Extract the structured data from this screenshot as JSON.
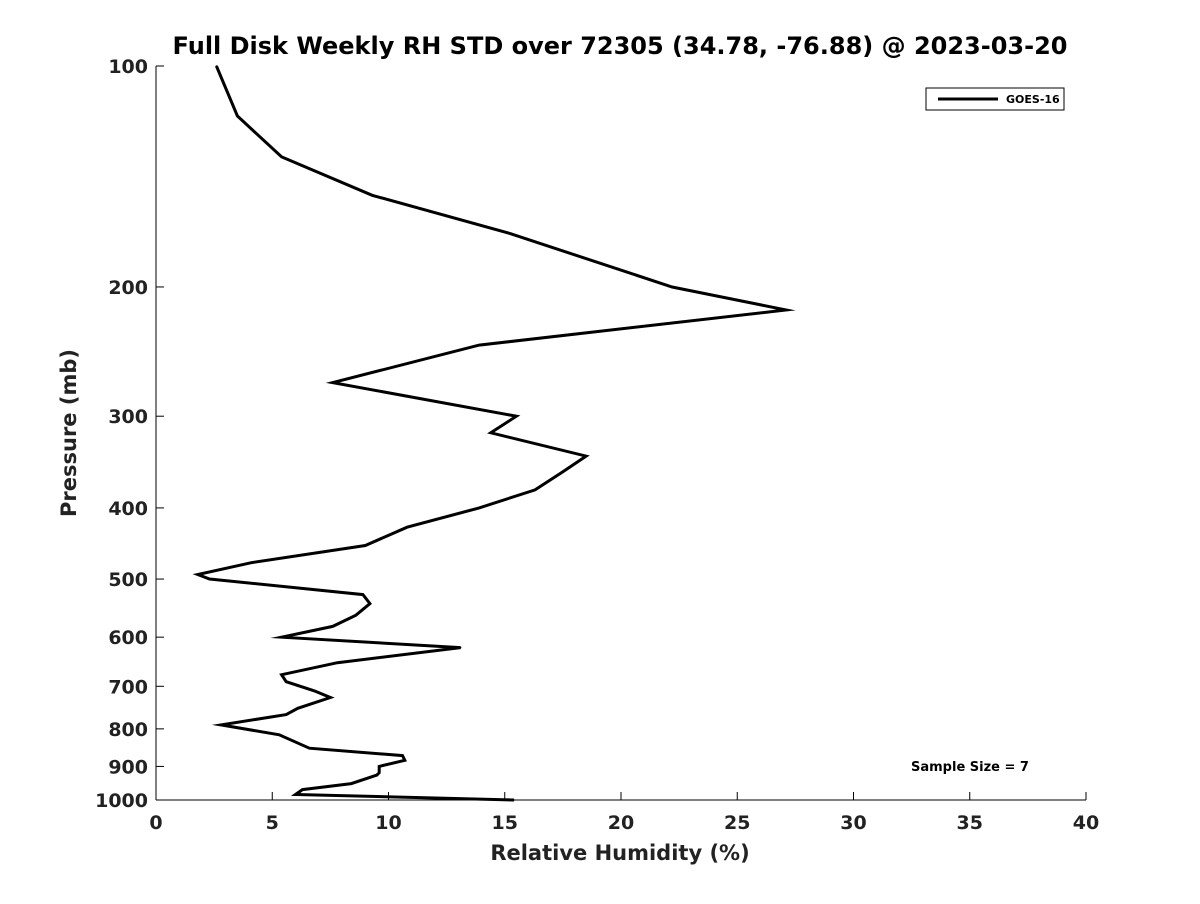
{
  "chart_data": {
    "type": "line",
    "title": "Full Disk Weekly RH STD over 72305 (34.78, -76.88) @ 2023-03-20",
    "xlabel": "Relative Humidity (%)",
    "ylabel": "Pressure (mb)",
    "xlim": [
      0,
      40
    ],
    "ylim": [
      1000,
      100
    ],
    "y_scale": "log",
    "x_ticks": [
      0,
      5,
      10,
      15,
      20,
      25,
      30,
      35,
      40
    ],
    "y_ticks": [
      100,
      200,
      300,
      400,
      500,
      600,
      700,
      800,
      900,
      1000
    ],
    "grid": false,
    "legend_position": "top-right",
    "annotation": "Sample Size = 7",
    "series": [
      {
        "name": "GOES-16",
        "color": "#000000",
        "points": [
          [
            2.6,
            100
          ],
          [
            3.5,
            117
          ],
          [
            5.4,
            133
          ],
          [
            9.3,
            150
          ],
          [
            15.2,
            169
          ],
          [
            22.2,
            200
          ],
          [
            27.1,
            215
          ],
          [
            13.9,
            240
          ],
          [
            7.6,
            270
          ],
          [
            15.5,
            300
          ],
          [
            14.4,
            316
          ],
          [
            18.5,
            340
          ],
          [
            17.5,
            357
          ],
          [
            16.3,
            378
          ],
          [
            13.9,
            400
          ],
          [
            10.8,
            425
          ],
          [
            9.0,
            450
          ],
          [
            4.1,
            475
          ],
          [
            1.8,
            493
          ],
          [
            2.3,
            500
          ],
          [
            8.9,
            525
          ],
          [
            9.2,
            540
          ],
          [
            8.6,
            560
          ],
          [
            7.6,
            580
          ],
          [
            5.4,
            600
          ],
          [
            13.1,
            620
          ],
          [
            7.8,
            650
          ],
          [
            5.4,
            675
          ],
          [
            5.6,
            690
          ],
          [
            6.8,
            710
          ],
          [
            7.5,
            725
          ],
          [
            6.1,
            750
          ],
          [
            5.6,
            765
          ],
          [
            2.8,
            790
          ],
          [
            5.3,
            815
          ],
          [
            6.6,
            850
          ],
          [
            10.6,
            870
          ],
          [
            10.7,
            883
          ],
          [
            9.6,
            900
          ],
          [
            9.6,
            918
          ],
          [
            9.5,
            925
          ],
          [
            8.4,
            950
          ],
          [
            6.3,
            968
          ],
          [
            6.0,
            983
          ],
          [
            15.4,
            1000
          ]
        ]
      }
    ]
  }
}
